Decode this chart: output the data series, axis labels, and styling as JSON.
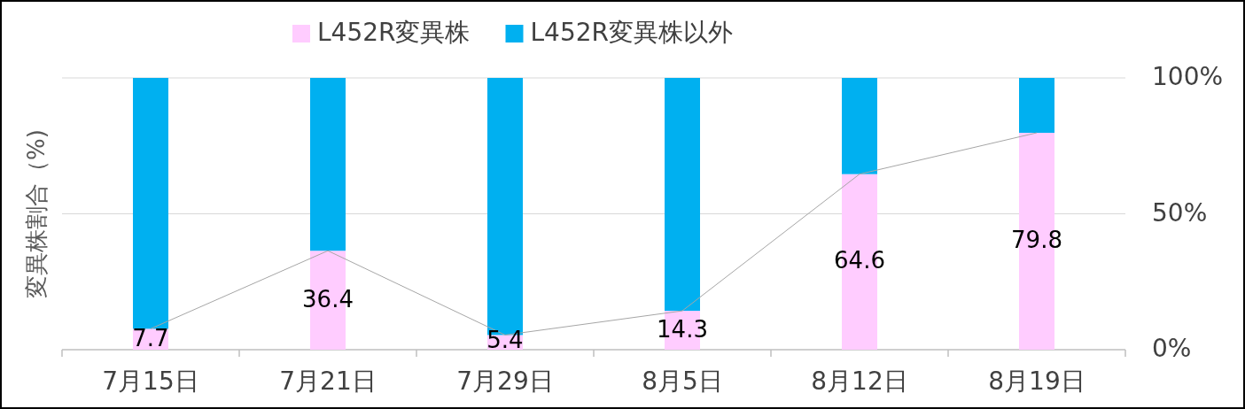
{
  "chart_data": {
    "type": "bar",
    "stacked": true,
    "ylabel": "変異株割合（%)",
    "categories": [
      "7月15日",
      "7月21日",
      "7月29日",
      "8月5日",
      "8月12日",
      "8月19日"
    ],
    "series": [
      {
        "name": "L452R変異株",
        "color": "#ffccff",
        "values": [
          7.7,
          36.4,
          5.4,
          14.3,
          64.6,
          79.8
        ],
        "value_labels": [
          "7.7",
          "36.4",
          "5.4",
          "14.3",
          "64.6",
          "79.8"
        ]
      },
      {
        "name": "L452R変異株以外",
        "color": "#00b0f0",
        "values": [
          92.3,
          63.6,
          94.6,
          85.7,
          35.4,
          20.2
        ]
      },
      {
        "type": "line",
        "color": "#a6a6a6",
        "values": [
          7.7,
          36.4,
          5.4,
          14.3,
          64.6,
          79.8
        ]
      }
    ],
    "ylim": [
      0,
      100
    ],
    "yticks": [
      {
        "value": 0,
        "label": "0%"
      },
      {
        "value": 50,
        "label": "50%"
      },
      {
        "value": 100,
        "label": "100%"
      }
    ],
    "grid": "y",
    "legend": "top"
  }
}
